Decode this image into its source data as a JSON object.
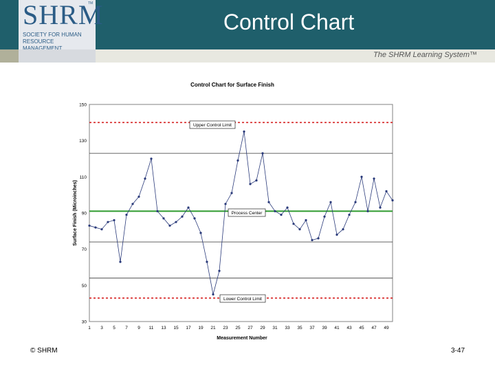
{
  "header": {
    "title": "Control Chart",
    "logo_text": "SHRM",
    "logo_tm": "TM",
    "logo_subtitle": "Society for Human Resource Management",
    "tagline": "The SHRM Learning System™"
  },
  "footer": {
    "copyright": "© SHRM",
    "page": "3-47"
  },
  "colors": {
    "header_bg": "#1f5f6b",
    "control_limit": "#d62020",
    "center_line": "#2e9a2e",
    "series": "#2a3a7a"
  },
  "chart_data": {
    "type": "line",
    "title": "Control Chart for Surface Finish",
    "xlabel": "Measurement Number",
    "ylabel": "Surface Finish (Microinches)",
    "xlim": [
      1,
      50
    ],
    "ylim": [
      30,
      150
    ],
    "yticks": [
      30,
      50,
      70,
      90,
      110,
      130,
      150
    ],
    "xticks": [
      1,
      3,
      5,
      7,
      9,
      11,
      13,
      15,
      17,
      19,
      21,
      23,
      25,
      27,
      29,
      31,
      33,
      35,
      37,
      39,
      41,
      43,
      45,
      47,
      49
    ],
    "grid_lines": [
      54,
      74,
      123
    ],
    "upper_control_limit": 140,
    "process_center": 91,
    "lower_control_limit": 43,
    "annotations": {
      "ucl": "Upper Control Limit",
      "center": "Process Center",
      "lcl": "Lower Control Limit"
    },
    "series": [
      {
        "x": [
          1,
          2,
          3,
          4,
          5,
          6,
          7,
          8,
          9,
          10,
          11,
          12,
          13,
          14,
          15,
          16,
          17,
          18,
          19,
          20,
          21,
          22,
          23,
          24,
          25,
          26,
          27,
          28,
          29,
          30,
          31,
          32,
          33,
          34,
          35,
          36,
          37,
          38,
          39,
          40,
          41,
          42,
          43,
          44,
          45,
          46,
          47,
          48,
          49,
          50
        ],
        "values": [
          83,
          82,
          81,
          85,
          86,
          63,
          89,
          95,
          99,
          109,
          120,
          91,
          87,
          83,
          85,
          88,
          93,
          87,
          79,
          63,
          45,
          58,
          95,
          101,
          119,
          135,
          106,
          108,
          123,
          96,
          91,
          89,
          93,
          84,
          81,
          86,
          75,
          76,
          88,
          96,
          78,
          81,
          89,
          96,
          110,
          91,
          109,
          93,
          102,
          97
        ]
      }
    ]
  }
}
